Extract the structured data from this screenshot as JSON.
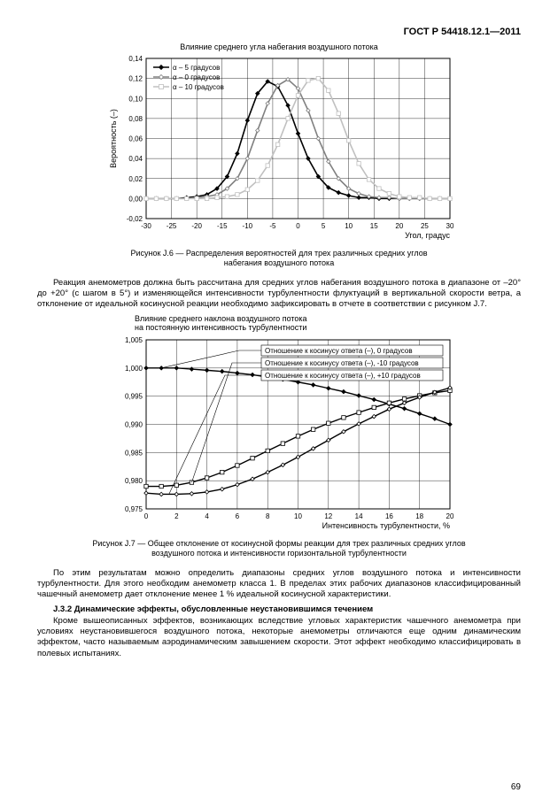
{
  "doc_header": "ГОСТ  Р  54418.12.1—2011",
  "page_number": "69",
  "chart1": {
    "type": "line",
    "title": "Влияние среднего угла набегания воздушного потока",
    "xlabel": "Угол, градус",
    "ylabel": "Вероятность (–)",
    "xlim": [
      -30,
      30
    ],
    "xtick_step": 5,
    "ylim": [
      -0.02,
      0.14
    ],
    "ytick_step": 0.02,
    "grid_color": "#000",
    "background_color": "#fff",
    "legend": [
      {
        "label": "α – 5 градусов",
        "color": "#000000",
        "marker": "diamond-filled"
      },
      {
        "label": "α – 0 градусов",
        "color": "#808080",
        "marker": "diamond-open"
      },
      {
        "label": "α – 10 градусов",
        "color": "#c0c0c0",
        "marker": "square-open"
      }
    ],
    "series": [
      {
        "name": "alpha_minus5",
        "color": "#000000",
        "marker": "diamond-filled",
        "line_width": 1.6,
        "x": [
          -30,
          -28,
          -26,
          -24,
          -22,
          -20,
          -18,
          -16,
          -14,
          -12,
          -10,
          -8,
          -6,
          -4,
          -2,
          0,
          2,
          4,
          6,
          8,
          10,
          12,
          14,
          16,
          18,
          20,
          22,
          24,
          26,
          28,
          30
        ],
        "y": [
          0.0,
          0.0,
          0.0,
          0.0,
          0.001,
          0.002,
          0.004,
          0.01,
          0.022,
          0.045,
          0.078,
          0.105,
          0.117,
          0.112,
          0.093,
          0.065,
          0.04,
          0.022,
          0.011,
          0.006,
          0.003,
          0.001,
          0.001,
          0.0,
          0.0,
          0.0,
          0.0,
          0.0,
          0.0,
          0.0,
          0.0
        ]
      },
      {
        "name": "alpha_0",
        "color": "#808080",
        "marker": "diamond-open",
        "line_width": 1.6,
        "x": [
          -30,
          -28,
          -26,
          -24,
          -22,
          -20,
          -18,
          -16,
          -14,
          -12,
          -10,
          -8,
          -6,
          -4,
          -2,
          0,
          2,
          4,
          6,
          8,
          10,
          12,
          14,
          16,
          18,
          20,
          22,
          24,
          26,
          28,
          30
        ],
        "y": [
          0.0,
          0.0,
          0.0,
          0.0,
          0.0,
          0.001,
          0.002,
          0.004,
          0.01,
          0.02,
          0.04,
          0.068,
          0.095,
          0.113,
          0.119,
          0.11,
          0.088,
          0.06,
          0.037,
          0.02,
          0.01,
          0.005,
          0.002,
          0.001,
          0.001,
          0.0,
          0.0,
          0.0,
          0.0,
          0.0,
          0.0
        ]
      },
      {
        "name": "alpha_10",
        "color": "#c0c0c0",
        "marker": "square-open",
        "line_width": 1.6,
        "x": [
          -30,
          -28,
          -26,
          -24,
          -22,
          -20,
          -18,
          -16,
          -14,
          -12,
          -10,
          -8,
          -6,
          -4,
          -2,
          0,
          2,
          4,
          6,
          8,
          10,
          12,
          14,
          16,
          18,
          20,
          22,
          24,
          26,
          28,
          30
        ],
        "y": [
          0.0,
          0.0,
          0.0,
          0.0,
          0.0,
          0.0,
          0.0,
          0.001,
          0.002,
          0.004,
          0.009,
          0.018,
          0.033,
          0.054,
          0.08,
          0.103,
          0.118,
          0.12,
          0.108,
          0.085,
          0.058,
          0.035,
          0.019,
          0.01,
          0.005,
          0.002,
          0.001,
          0.001,
          0.0,
          0.0,
          0.0
        ]
      }
    ]
  },
  "figcaption1": "Рисунок J.6 — Распределения вероятностей  для трех различных средних углов\nнабегания воздушного потока",
  "para1": "Реакция анемометров должна быть рассчитана для средних углов набегания воздушного потока в диапазоне от –20° до +20° (с шагом в 5°) и изменяющейся интенсивности турбулентности флуктуаций в вертикальной скорости ветра, а отклонение от идеальной косинусной реакции необходимо зафиксировать в отчете в соответствии с  рисунком J.7.",
  "chart2": {
    "type": "line",
    "title_line1": "Влияние среднего наклона воздушного потока",
    "title_line2": "на постоянную интенсивность турбулентности",
    "xlabel": "Интенсивность турбулентности, %",
    "ylabel": "",
    "xlim": [
      0,
      20
    ],
    "xtick_step": 2,
    "ylim": [
      0.975,
      1.005
    ],
    "ytick_step": 0.005,
    "grid_color": "#000",
    "background_color": "#fff",
    "legend": [
      {
        "label": "Отношение к косинусу ответа (–),  0 градусов",
        "marker": "diamond-filled"
      },
      {
        "label": "Отношение к косинусу ответа (–), -10 градусов",
        "marker": "square-open"
      },
      {
        "label": "Отношение к косинусу ответа (–), +10 градусов",
        "marker": "diamond-open"
      }
    ],
    "series": [
      {
        "name": "zero_deg",
        "color": "#000000",
        "marker": "diamond-filled",
        "line_width": 1.4,
        "x": [
          0,
          1,
          2,
          3,
          4,
          5,
          6,
          7,
          8,
          9,
          10,
          11,
          12,
          13,
          14,
          15,
          16,
          17,
          18,
          19,
          20
        ],
        "y": [
          1.0,
          1.0,
          1.0,
          0.9998,
          0.9996,
          0.9994,
          0.9991,
          0.9988,
          0.9984,
          0.998,
          0.9975,
          0.997,
          0.9964,
          0.9958,
          0.9951,
          0.9944,
          0.9936,
          0.9928,
          0.9919,
          0.991,
          0.99
        ]
      },
      {
        "name": "minus10_deg",
        "color": "#000000",
        "marker": "square-open",
        "line_width": 1.4,
        "x": [
          0,
          1,
          2,
          3,
          4,
          5,
          6,
          7,
          8,
          9,
          10,
          11,
          12,
          13,
          14,
          15,
          16,
          17,
          18,
          19,
          20
        ],
        "y": [
          0.979,
          0.979,
          0.9792,
          0.9797,
          0.9805,
          0.9815,
          0.9827,
          0.984,
          0.9853,
          0.9866,
          0.9879,
          0.9891,
          0.9902,
          0.9912,
          0.9921,
          0.993,
          0.9938,
          0.9945,
          0.9951,
          0.9956,
          0.996
        ]
      },
      {
        "name": "plus10_deg",
        "color": "#000000",
        "marker": "diamond-open",
        "line_width": 1.4,
        "x": [
          0,
          1,
          2,
          3,
          4,
          5,
          6,
          7,
          8,
          9,
          10,
          11,
          12,
          13,
          14,
          15,
          16,
          17,
          18,
          19,
          20
        ],
        "y": [
          0.9778,
          0.9776,
          0.9776,
          0.9777,
          0.978,
          0.9785,
          0.9793,
          0.9803,
          0.9815,
          0.9828,
          0.9842,
          0.9857,
          0.9872,
          0.9887,
          0.9901,
          0.9914,
          0.9927,
          0.9938,
          0.9948,
          0.9957,
          0.9965
        ]
      }
    ]
  },
  "figcaption2": "Рисунок J.7 — Общее отклонение от косинусной формы реакции для трех различных средних углов\nвоздушного потока и интенсивности горизонтальной турбулентности",
  "para2": "По этим результатам можно определить диапазоны средних углов воздушного потока и интенсивности турбулентности. Для этого необходим анемометр класса 1. В пределах этих рабочих диапазонов классифицированный чашечный анемометр дает отклонение менее 1 % идеальной косинусной характеристики.",
  "sec_title": "J.3.2 Динамические эффекты, обусловленные неустановившимся течением",
  "para3": "Кроме вышеописанных эффектов, возникающих вследствие угловых характеристик чашечного анемометра при условиях неустановившегося воздушного потока, некоторые анемометры отличаются еще одним динамическим эффектом, часто называемым аэродинамическим завышением скорости. Этот эффект необходимо классифицировать в полевых испытаниях."
}
